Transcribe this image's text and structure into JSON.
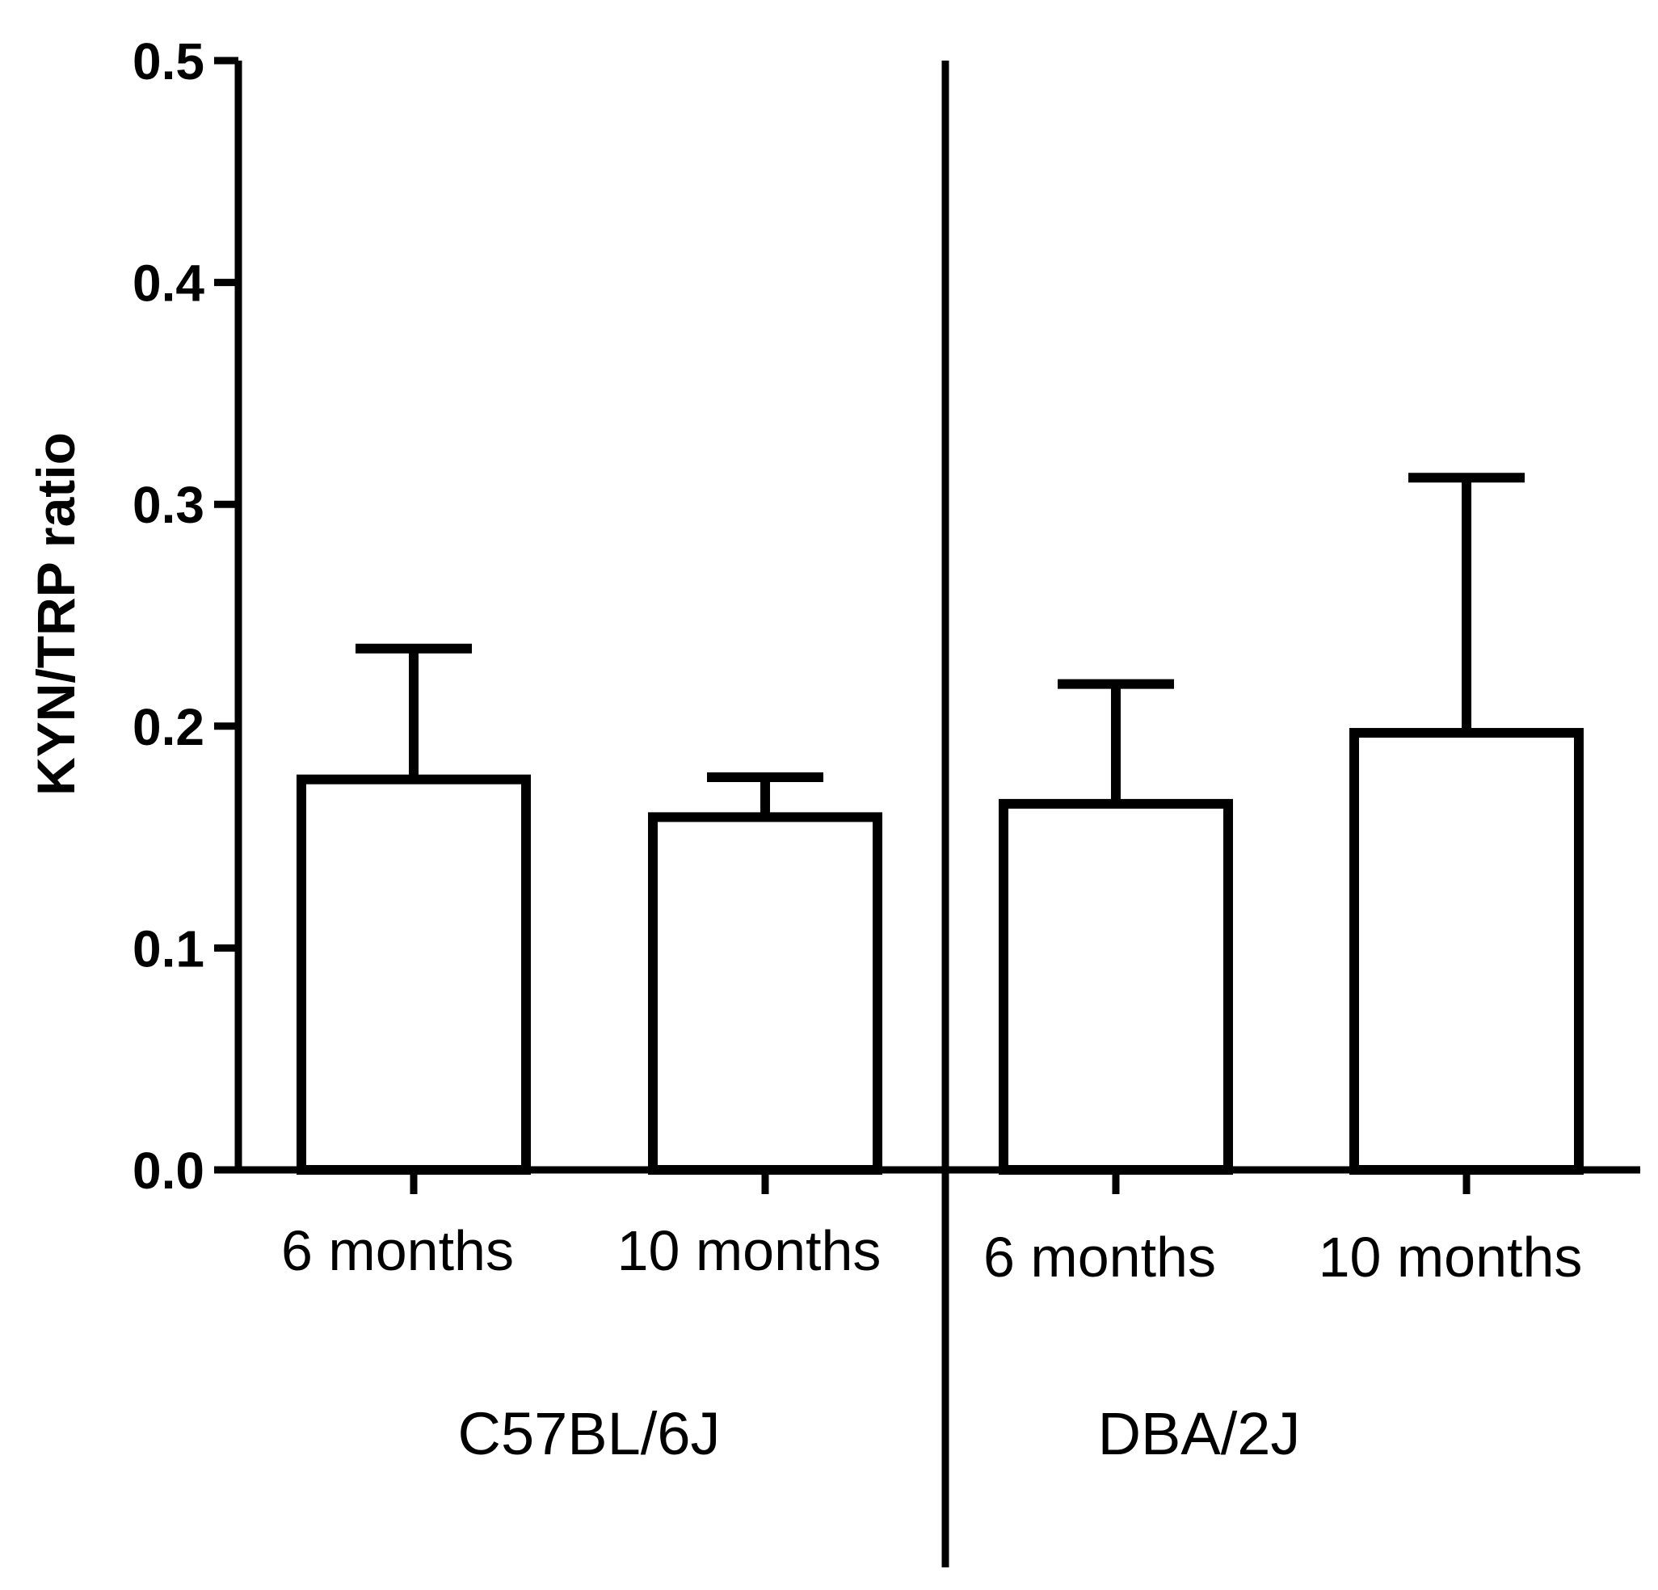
{
  "chart_data": {
    "type": "bar",
    "title": "",
    "xlabel": "",
    "ylabel": "KYN/TRP ratio",
    "ylim": [
      0,
      0.5
    ],
    "yticks": [
      "0.0",
      "0.1",
      "0.2",
      "0.3",
      "0.4",
      "0.5"
    ],
    "grid": false,
    "categories": [
      "6 months",
      "10 months",
      "6 months",
      "10 months"
    ],
    "groups": [
      "C57BL/6J",
      "C57BL/6J",
      "DBA/2J",
      "DBA/2J"
    ],
    "group_labels": [
      "C57BL/6J",
      "DBA/2J"
    ],
    "values": [
      0.176,
      0.159,
      0.165,
      0.197
    ],
    "error_upper": [
      0.059,
      0.018,
      0.054,
      0.115
    ]
  }
}
